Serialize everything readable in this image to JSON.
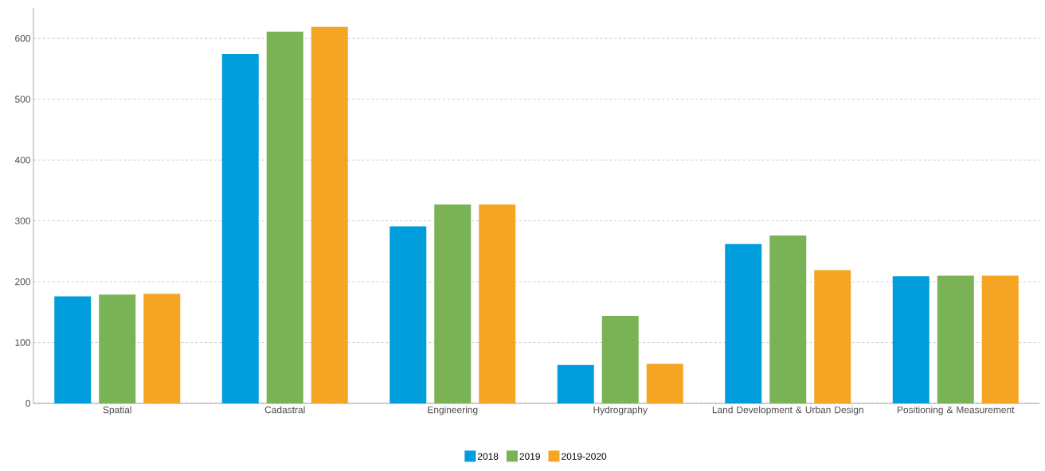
{
  "chart_data": {
    "type": "bar",
    "categories": [
      "Spatial",
      "Cadastral",
      "Engineering",
      "Hydrography",
      "Land Development & Urban Design",
      "Positioning & Measurement"
    ],
    "series": [
      {
        "name": "2018",
        "color": "#009ddd",
        "values": [
          176,
          574,
          291,
          63,
          262,
          209
        ]
      },
      {
        "name": "2019",
        "color": "#7ab356",
        "values": [
          179,
          611,
          327,
          144,
          276,
          210
        ]
      },
      {
        "name": "2019-2020",
        "color": "#f4a523",
        "values": [
          180,
          619,
          327,
          65,
          219,
          210
        ]
      }
    ],
    "ylim": [
      0,
      650
    ],
    "yticks": [
      0,
      100,
      200,
      300,
      400,
      500,
      600
    ],
    "grid": "y",
    "legend": "bottom"
  }
}
